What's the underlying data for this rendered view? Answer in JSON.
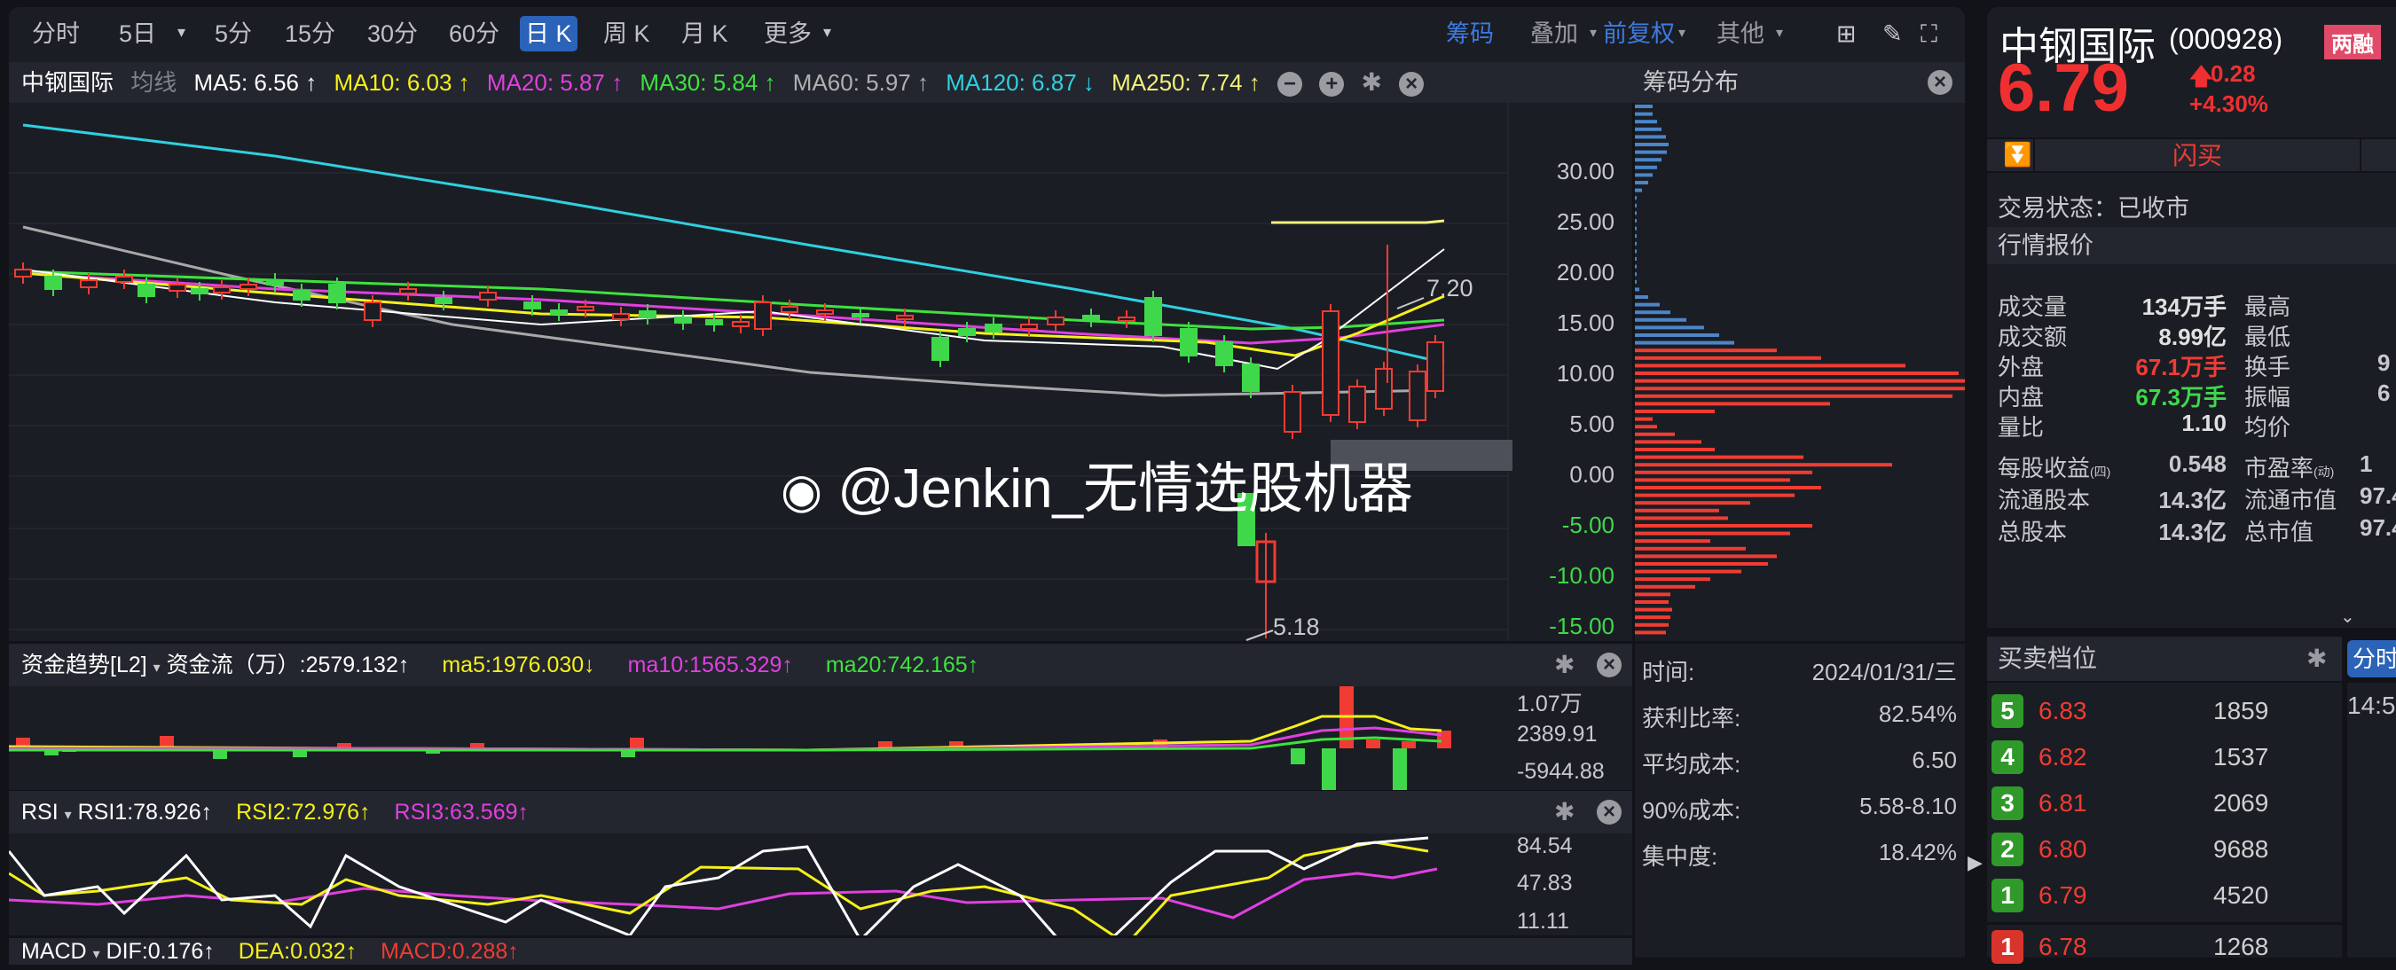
{
  "toolbar": {
    "tabs": [
      "分时",
      "5日",
      "5分",
      "15分",
      "30分",
      "60分",
      "日 K",
      "周 K",
      "月 K",
      "更多"
    ],
    "active": "日 K",
    "chips": "筹码",
    "overlay": "叠加",
    "adjust": "前复权",
    "other": "其他"
  },
  "ma_header": {
    "name": "中钢国际",
    "type": "均线",
    "ma5": "MA5: 6.56 ↑",
    "ma10": "MA10: 6.03 ↑",
    "ma20": "MA20: 5.87 ↑",
    "ma30": "MA30: 5.84 ↑",
    "ma60": "MA60: 5.97 ↑",
    "ma120": "MA120: 6.87 ↓",
    "ma250": "MA250: 7.74 ↑",
    "minus": "−",
    "plus": "+",
    "close": "×"
  },
  "colors": {
    "ma5": "#ffffff",
    "ma10": "#f5f01a",
    "ma20": "#e040e0",
    "ma30": "#3ee23e",
    "ma60": "#b0b0b0",
    "ma120": "#2fd0e0",
    "ma250": "#f5f07a",
    "up": "#f03c32",
    "down": "#3ed84a",
    "accent": "#2b63b8"
  },
  "price_axis": [
    "30.00",
    "25.00",
    "20.00",
    "15.00",
    "10.00",
    "5.00",
    "0.00",
    "-5.00",
    "-10.00",
    "-15.00"
  ],
  "annotations": {
    "high": "7.20",
    "low": "5.18"
  },
  "watermark": "@Jenkin_无情选股机器",
  "chip_panel": {
    "title": "筹码分布",
    "rows": [
      {
        "label": "时间:",
        "value": "2024/01/31/三"
      },
      {
        "label": "获利比率:",
        "value": "82.54%"
      },
      {
        "label": "平均成本:",
        "value": "6.50"
      },
      {
        "label": "90%成本:",
        "value": "5.58-8.10"
      },
      {
        "label": "集中度:",
        "value": "18.42%"
      }
    ]
  },
  "fund": {
    "title": "资金趋势[L2]",
    "flow": "资金流（万）:2579.132↑",
    "ma5": "ma5:1976.030↓",
    "ma10": "ma10:1565.329↑",
    "ma20": "ma20:742.165↑",
    "axis": [
      "1.07万",
      "2389.91",
      "-5944.88"
    ]
  },
  "rsi": {
    "title": "RSI",
    "rsi1": "RSI1:78.926↑",
    "rsi2": "RSI2:72.976↑",
    "rsi3": "RSI3:63.569↑",
    "axis": [
      "84.54",
      "47.83",
      "11.11"
    ]
  },
  "macd": {
    "title": "MACD",
    "dif": "DIF:0.176↑",
    "dea": "DEA:0.032↑",
    "macd": "MACD:0.288↑"
  },
  "quote": {
    "name": "中钢国际",
    "code": "(000928)",
    "tag": "两融",
    "price": "6.79",
    "change": "0.28",
    "pct": "+4.30%",
    "flash_buy": "闪买",
    "status": "交易状态：已收市",
    "section": "行情报价",
    "stats": [
      [
        "成交量",
        "134万手",
        "最高",
        ""
      ],
      [
        "成交额",
        "8.99亿",
        "最低",
        ""
      ],
      [
        "外盘",
        "67.1万手",
        "换手",
        "9"
      ],
      [
        "内盘",
        "67.3万手",
        "振幅",
        "6"
      ],
      [
        "量比",
        "1.10",
        "均价",
        ""
      ]
    ],
    "stats2": [
      [
        "每股收益",
        "(四)",
        "0.548",
        "市盈率",
        "(动)",
        "1"
      ],
      [
        "流通股本",
        "",
        "14.3亿",
        "流通市值",
        "",
        "97.4"
      ],
      [
        "总股本",
        "",
        "14.3亿",
        "总市值",
        "",
        "97.4"
      ]
    ]
  },
  "orderbook": {
    "title": "买卖档位",
    "rows": [
      {
        "n": "5",
        "price": "6.83",
        "vol": "1859",
        "side": "ask"
      },
      {
        "n": "4",
        "price": "6.82",
        "vol": "1537",
        "side": "ask"
      },
      {
        "n": "3",
        "price": "6.81",
        "vol": "2069",
        "side": "ask"
      },
      {
        "n": "2",
        "price": "6.80",
        "vol": "9688",
        "side": "ask"
      },
      {
        "n": "1",
        "price": "6.79",
        "vol": "4520",
        "side": "ask"
      },
      {
        "n": "1",
        "price": "6.78",
        "vol": "1268",
        "side": "bid"
      }
    ]
  },
  "ticks": {
    "tab": "分时",
    "time": "14:5"
  }
}
